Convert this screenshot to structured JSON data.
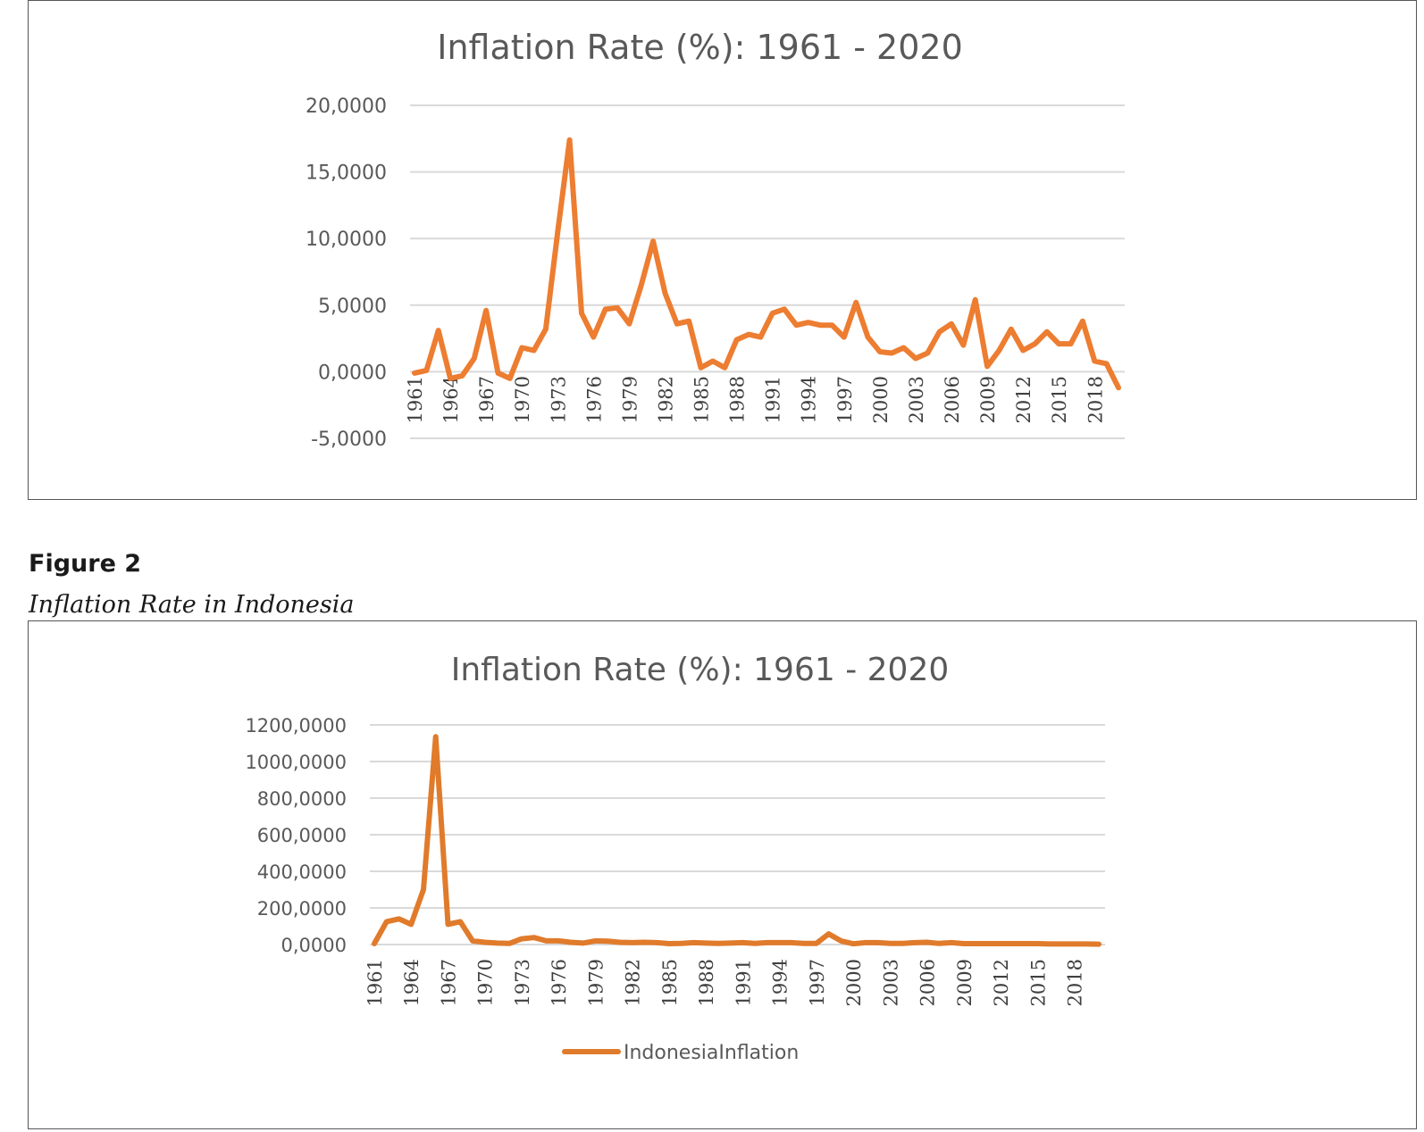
{
  "figure": {
    "label": "Figure 2",
    "caption": "Inflation Rate in Indonesia"
  },
  "chart_data": [
    {
      "type": "line",
      "title": "Inflation Rate (%): 1961 - 2020",
      "xlabel": "",
      "ylabel": "",
      "ylim": [
        -5,
        20
      ],
      "yticks": [
        "-5,0000",
        "0,0000",
        "5,0000",
        "10,0000",
        "15,0000",
        "20,0000"
      ],
      "xtick_labels": [
        "1961",
        "1964",
        "1967",
        "1970",
        "1973",
        "1976",
        "1979",
        "1982",
        "1985",
        "1988",
        "1991",
        "1994",
        "1997",
        "2000",
        "2003",
        "2006",
        "2009",
        "2012",
        "2015",
        "2018"
      ],
      "grid": true,
      "line_color": "#ED7D31",
      "x": [
        1961,
        1962,
        1963,
        1964,
        1965,
        1966,
        1967,
        1968,
        1969,
        1970,
        1971,
        1972,
        1973,
        1974,
        1975,
        1976,
        1977,
        1978,
        1979,
        1980,
        1981,
        1982,
        1983,
        1984,
        1985,
        1986,
        1987,
        1988,
        1989,
        1990,
        1991,
        1992,
        1993,
        1994,
        1995,
        1996,
        1997,
        1998,
        1999,
        2000,
        2001,
        2002,
        2003,
        2004,
        2005,
        2006,
        2007,
        2008,
        2009,
        2010,
        2011,
        2012,
        2013,
        2014,
        2015,
        2016,
        2017,
        2018,
        2019,
        2020
      ],
      "series": [
        {
          "values": [
            -0.1,
            0.1,
            3.1,
            -0.5,
            -0.3,
            1.0,
            4.6,
            -0.1,
            -0.5,
            1.8,
            1.6,
            3.2,
            10.5,
            17.4,
            4.4,
            2.6,
            4.7,
            4.8,
            3.6,
            6.5,
            9.8,
            5.9,
            3.6,
            3.8,
            0.3,
            0.8,
            0.3,
            2.4,
            2.8,
            2.6,
            4.4,
            4.7,
            3.5,
            3.7,
            3.5,
            3.5,
            2.6,
            5.2,
            2.6,
            1.5,
            1.4,
            1.8,
            1.0,
            1.4,
            3.0,
            3.6,
            2.0,
            5.4,
            0.4,
            1.6,
            3.2,
            1.6,
            2.1,
            3.0,
            2.1,
            2.1,
            3.8,
            0.8,
            0.6,
            -1.2
          ]
        }
      ]
    },
    {
      "type": "line",
      "title": "Inflation Rate (%): 1961 - 2020",
      "xlabel": "",
      "ylabel": "",
      "ylim": [
        0,
        1200
      ],
      "yticks": [
        "0,0000",
        "200,0000",
        "400,0000",
        "600,0000",
        "800,0000",
        "1000,0000",
        "1200,0000"
      ],
      "xtick_labels": [
        "1961",
        "1964",
        "1967",
        "1970",
        "1973",
        "1976",
        "1979",
        "1982",
        "1985",
        "1988",
        "1991",
        "1994",
        "1997",
        "2000",
        "2003",
        "2006",
        "2009",
        "2012",
        "2015",
        "2018"
      ],
      "grid": true,
      "legend": "bottom",
      "line_color": "#E07B2C",
      "x": [
        1961,
        1962,
        1963,
        1964,
        1965,
        1966,
        1967,
        1968,
        1969,
        1970,
        1971,
        1972,
        1973,
        1974,
        1975,
        1976,
        1977,
        1978,
        1979,
        1980,
        1981,
        1982,
        1983,
        1984,
        1985,
        1986,
        1987,
        1988,
        1989,
        1990,
        1991,
        1992,
        1993,
        1994,
        1995,
        1996,
        1997,
        1998,
        1999,
        2000,
        2001,
        2002,
        2003,
        2004,
        2005,
        2006,
        2007,
        2008,
        2009,
        2010,
        2011,
        2012,
        2013,
        2014,
        2015,
        2016,
        2017,
        2018,
        2019,
        2020
      ],
      "series": [
        {
          "name": "IndonesiaInflation",
          "values": [
            5,
            125,
            140,
            110,
            300,
            1135,
            110,
            125,
            20,
            12,
            8,
            6,
            31,
            38,
            20,
            20,
            12,
            8,
            20,
            18,
            12,
            10,
            12,
            10,
            5,
            6,
            10,
            8,
            6,
            8,
            10,
            6,
            10,
            10,
            10,
            6,
            6,
            58,
            20,
            4,
            10,
            10,
            6,
            6,
            10,
            12,
            6,
            10,
            5,
            5,
            5,
            5,
            5,
            5,
            5,
            3,
            3,
            3,
            3,
            2
          ]
        }
      ]
    }
  ]
}
